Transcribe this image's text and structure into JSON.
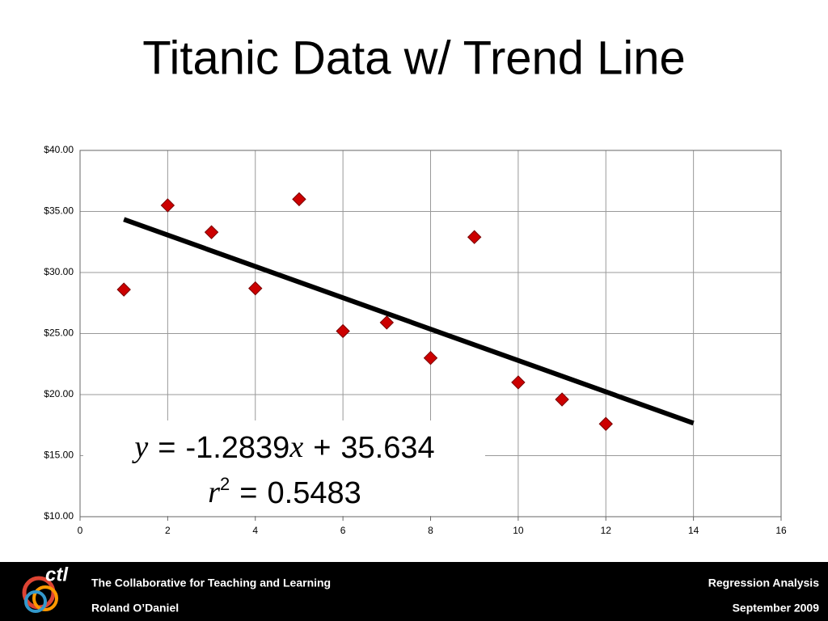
{
  "chart_data": {
    "type": "scatter",
    "title": "Titanic Data w/ Trend Line",
    "x": [
      1,
      2,
      3,
      4,
      5,
      6,
      7,
      8,
      9,
      10,
      11,
      12
    ],
    "values": [
      28.6,
      35.5,
      33.3,
      28.7,
      36.0,
      25.2,
      25.9,
      23.0,
      32.9,
      21.0,
      19.6,
      17.6
    ],
    "color": "#cc0000",
    "xlim": [
      0,
      16
    ],
    "xticks": [
      0,
      2,
      4,
      6,
      8,
      10,
      12,
      14,
      16
    ],
    "ylim": [
      10,
      40
    ],
    "yticks": [
      {
        "value": 10,
        "label": "$10.00"
      },
      {
        "value": 15,
        "label": "$15.00"
      },
      {
        "value": 20,
        "label": "$20.00"
      },
      {
        "value": 25,
        "label": "$25.00"
      },
      {
        "value": 30,
        "label": "$30.00"
      },
      {
        "value": 35,
        "label": "$35.00"
      },
      {
        "value": 40,
        "label": "$40.00"
      }
    ],
    "grid": true,
    "trendline": {
      "x": [
        1,
        14
      ],
      "color": "#000000",
      "equation": {
        "lhs": "y",
        "eq": "=",
        "slope": -1.2839,
        "var": "x",
        "plus": "+",
        "intercept": 35.634
      },
      "r2": {
        "symbol": "r",
        "exponent": "2",
        "eq": "=",
        "value": 0.5483
      }
    }
  },
  "footer": {
    "logo": "ctl",
    "organization": "The Collaborative for Teaching and Learning",
    "author": "Roland O’Daniel",
    "topic": "Regression Analysis",
    "date": "September  2009"
  }
}
